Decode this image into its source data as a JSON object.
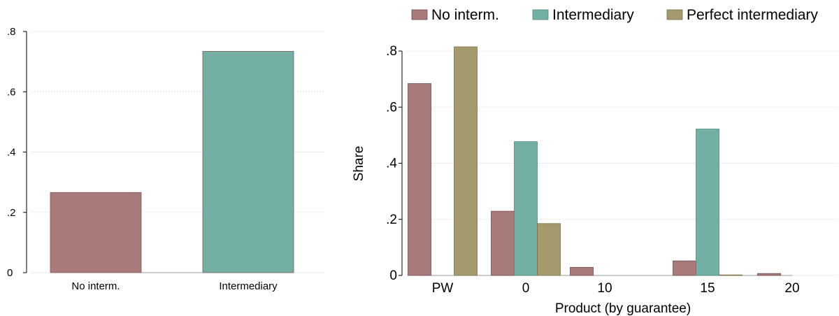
{
  "chart_data": [
    {
      "type": "bar",
      "categories": [
        "No interm.",
        "Intermediary"
      ],
      "values": [
        0.266,
        0.734
      ],
      "ylim": [
        0,
        0.8
      ],
      "yticks": [
        0,
        0.2,
        0.4,
        0.6,
        0.8
      ],
      "ytick_labels": [
        "0",
        ".2",
        ".4",
        ".6",
        ".8"
      ],
      "xlabel": "",
      "ylabel": "",
      "grid": true,
      "colors": [
        "#a87a7a",
        "#74afa4"
      ]
    },
    {
      "type": "bar",
      "categories": [
        "PW",
        "0",
        "10",
        "15",
        "20"
      ],
      "series": [
        {
          "name": "No interm.",
          "color": "#a87a7a",
          "values": [
            0.684,
            0.229,
            0.029,
            0.052,
            0.007
          ]
        },
        {
          "name": "Intermediary",
          "color": "#74afa4",
          "values": [
            0.0,
            0.477,
            0.0,
            0.522,
            0.0
          ]
        },
        {
          "name": "Perfect intermediary",
          "color": "#a59a6e",
          "values": [
            0.815,
            0.185,
            0.0,
            0.002,
            0.0
          ]
        }
      ],
      "ylim": [
        0,
        0.8
      ],
      "yticks": [
        0,
        0.2,
        0.4,
        0.6,
        0.8
      ],
      "ytick_labels": [
        "0",
        ".2",
        ".4",
        ".6",
        ".8"
      ],
      "xlabel": "Product (by guarantee)",
      "ylabel": "Share",
      "grid": true,
      "legend": "top"
    }
  ]
}
